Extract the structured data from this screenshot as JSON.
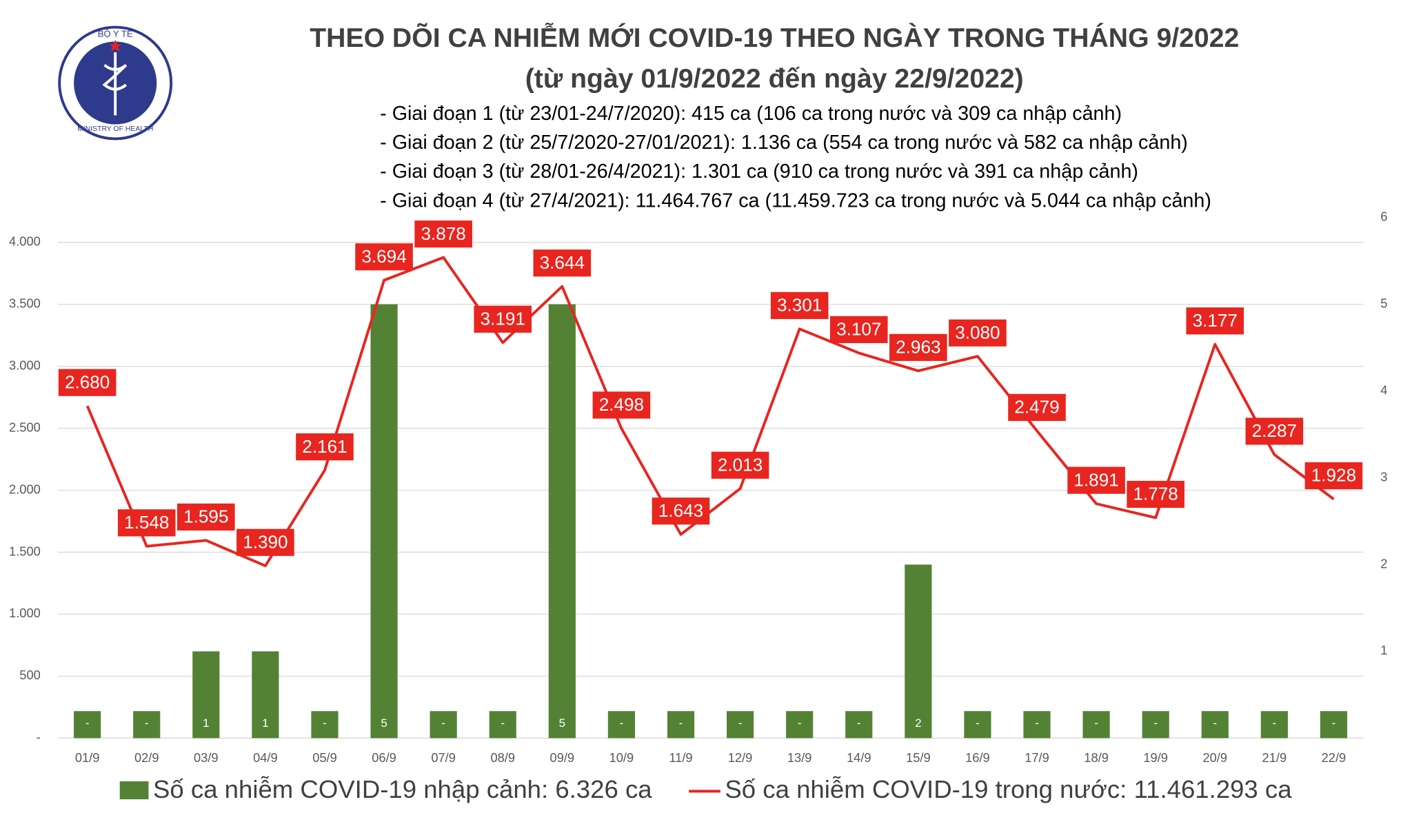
{
  "logo_text": {
    "top": "BỘ Y TẾ",
    "bottom": "MINISTRY OF HEALTH"
  },
  "chart_data": {
    "type": "combo",
    "title": "THEO DÕI CA NHIỄM MỚI COVID-19 THEO NGÀY TRONG THÁNG 9/2022",
    "subtitle": "(từ ngày 01/9/2022 đến ngày 22/9/2022)",
    "notes": [
      "- Giai đoạn 1 (từ 23/01-24/7/2020): 415 ca (106 ca trong nước và 309 ca nhập cảnh)",
      "- Giai đoạn 2 (từ 25/7/2020-27/01/2021): 1.136 ca (554 ca trong nước và 582 ca nhập cảnh)",
      "- Giai đoạn 3 (từ 28/01-26/4/2021): 1.301 ca (910 ca trong nước và 391 ca nhập cảnh)",
      "- Giai đoạn 4 (từ 27/4/2021): 11.464.767 ca (11.459.723 ca trong nước và 5.044 ca nhập cảnh)"
    ],
    "categories": [
      "01/9",
      "02/9",
      "03/9",
      "04/9",
      "05/9",
      "06/9",
      "07/9",
      "08/9",
      "09/9",
      "10/9",
      "11/9",
      "12/9",
      "13/9",
      "14/9",
      "15/9",
      "16/9",
      "17/9",
      "18/9",
      "19/9",
      "20/9",
      "21/9",
      "22/9"
    ],
    "series": [
      {
        "name": "Số ca nhiễm COVID-19 nhập cảnh: 6.326 ca",
        "type": "bar",
        "axis": "y2",
        "color": "#548235",
        "values": [
          0,
          0,
          1,
          1,
          0,
          5,
          0,
          0,
          5,
          0,
          0,
          0,
          0,
          0,
          2,
          0,
          0,
          0,
          0,
          0,
          0,
          0
        ],
        "value_labels": [
          "-",
          "-",
          "1",
          "1",
          "-",
          "5",
          "-",
          "-",
          "5",
          "-",
          "-",
          "-",
          "-",
          "-",
          "2",
          "-",
          "-",
          "-",
          "-",
          "-",
          "-",
          "-"
        ]
      },
      {
        "name": "Số ca nhiễm COVID-19 trong nước: 11.461.293 ca",
        "type": "line",
        "color": "#e8251f",
        "values": [
          2680,
          1548,
          1595,
          1390,
          2161,
          3694,
          3878,
          3191,
          3644,
          2498,
          1643,
          2013,
          3301,
          3107,
          2963,
          3080,
          2479,
          1891,
          1778,
          3177,
          2287,
          1928
        ],
        "value_labels": [
          "2.680",
          "1.548",
          "1.595",
          "1.390",
          "2.161",
          "3.694",
          "3.878",
          "3.191",
          "3.644",
          "2.498",
          "1.643",
          "2.013",
          "3.301",
          "3.107",
          "2.963",
          "3.080",
          "2.479",
          "1.891",
          "1.778",
          "3.177",
          "2.287",
          "1.928"
        ]
      }
    ],
    "ylim": [
      0,
      4200
    ],
    "yticks": [
      {
        "value": 0,
        "label": "-"
      },
      500,
      {
        "value": 1000,
        "label": "1.000"
      },
      {
        "value": 1500,
        "label": "1.500"
      },
      {
        "value": 2000,
        "label": "2.000"
      },
      {
        "value": 2500,
        "label": "2.500"
      },
      {
        "value": 3000,
        "label": "3.000"
      },
      {
        "value": 3500,
        "label": "3.500"
      },
      {
        "value": 4000,
        "label": "4.000"
      }
    ],
    "y2lim": [
      0,
      6
    ],
    "y2ticks": [
      1,
      2,
      3,
      4,
      5,
      6
    ],
    "grid": true
  }
}
